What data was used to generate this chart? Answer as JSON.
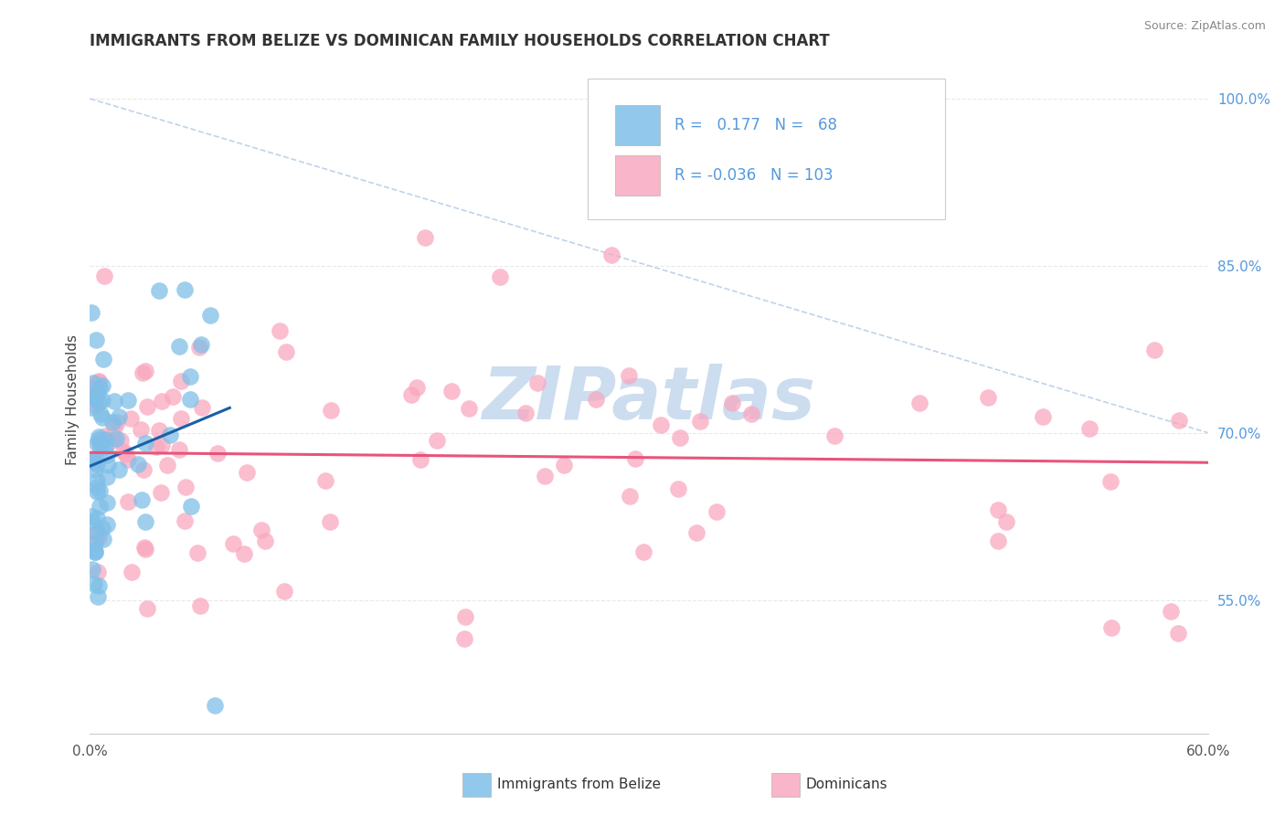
{
  "title": "IMMIGRANTS FROM BELIZE VS DOMINICAN FAMILY HOUSEHOLDS CORRELATION CHART",
  "source": "Source: ZipAtlas.com",
  "ylabel": "Family Households",
  "yaxis_labels": [
    "100.0%",
    "85.0%",
    "70.0%",
    "55.0%"
  ],
  "yaxis_values": [
    1.0,
    0.85,
    0.7,
    0.55
  ],
  "xlim": [
    0.0,
    0.6
  ],
  "ylim": [
    0.43,
    1.03
  ],
  "belize_R": 0.177,
  "belize_N": 68,
  "dominican_R": -0.036,
  "dominican_N": 103,
  "belize_color": "#7fbfe8",
  "dominican_color": "#f9a8c0",
  "belize_line_color": "#1a5fa8",
  "dominican_line_color": "#e8547a",
  "background_color": "#ffffff",
  "grid_color": "#e8e8e8",
  "diagonal_color": "#b8cfe8",
  "watermark_color": "#ccddef",
  "title_color": "#333333",
  "source_color": "#888888",
  "tick_color": "#555555",
  "right_tick_color": "#5599dd"
}
